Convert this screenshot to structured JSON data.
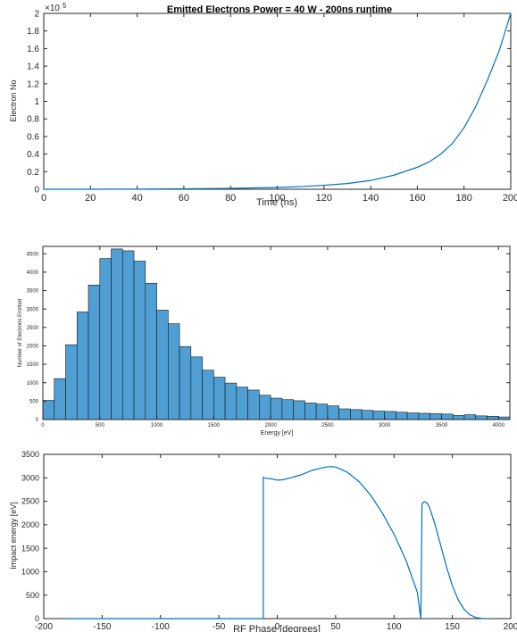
{
  "chart_data": [
    {
      "type": "line",
      "title": "Emitted Electrons Power = 40 W - 200ns runtime",
      "xlabel": "Time (ns)",
      "ylabel": "Electron No",
      "y_multiplier": "×10",
      "y_exponent": "5",
      "xlim": [
        0,
        200
      ],
      "ylim": [
        0,
        2
      ],
      "xticks": [
        "0",
        "20",
        "40",
        "60",
        "80",
        "100",
        "120",
        "140",
        "160",
        "180",
        "200"
      ],
      "yticks": [
        "0",
        "0.2",
        "0.4",
        "0.6",
        "0.8",
        "1",
        "1.2",
        "1.4",
        "1.6",
        "1.8",
        "2"
      ],
      "series": [
        {
          "x": [
            0,
            20,
            40,
            60,
            80,
            100,
            110,
            120,
            130,
            140,
            150,
            160,
            165,
            170,
            175,
            180,
            185,
            190,
            195,
            200
          ],
          "y": [
            0,
            0,
            0.002,
            0.005,
            0.01,
            0.02,
            0.03,
            0.045,
            0.065,
            0.1,
            0.16,
            0.25,
            0.31,
            0.4,
            0.52,
            0.7,
            0.94,
            1.24,
            1.57,
            2.0
          ]
        }
      ],
      "grid": false,
      "color": "#0072bd"
    },
    {
      "type": "bar",
      "xlabel": "Energy [eV]",
      "ylabel": "Number of Electrons Emitted",
      "xlim": [
        0,
        4100
      ],
      "ylim": [
        0,
        4700
      ],
      "xticks": [
        "0",
        "500",
        "1000",
        "1500",
        "2000",
        "2500",
        "3000",
        "3500",
        "4000"
      ],
      "yticks": [
        "0",
        "500",
        "1000",
        "1500",
        "2000",
        "2500",
        "3000",
        "3500",
        "4000",
        "4500"
      ],
      "bin_start": 0,
      "bin_width": 100,
      "values": [
        520,
        1110,
        2030,
        2920,
        3650,
        4370,
        4630,
        4580,
        4300,
        3700,
        2970,
        2600,
        1980,
        1700,
        1340,
        1150,
        990,
        880,
        800,
        660,
        580,
        540,
        510,
        450,
        420,
        370,
        290,
        270,
        250,
        230,
        220,
        200,
        180,
        170,
        160,
        150,
        110,
        130,
        100,
        90,
        70
      ],
      "grid": false,
      "color": "#4f9ed4"
    },
    {
      "type": "line",
      "xlabel": "RF Phase [degrees]",
      "ylabel": "Impact energy [eV]",
      "xlim": [
        -200,
        200
      ],
      "ylim": [
        0,
        3500
      ],
      "xticks": [
        "-200",
        "-150",
        "-100",
        "-50",
        "0",
        "50",
        "100",
        "150",
        "200"
      ],
      "yticks": [
        "0",
        "500",
        "1000",
        "1500",
        "2000",
        "2500",
        "3000",
        "3500"
      ],
      "series": [
        {
          "x": [
            -180,
            -12,
            -12,
            -10,
            -5,
            0,
            5,
            10,
            20,
            30,
            40,
            45,
            50,
            60,
            70,
            80,
            90,
            100,
            110,
            120,
            123,
            124,
            126,
            128,
            130,
            135,
            140,
            145,
            150,
            155,
            160,
            165,
            170,
            175,
            180
          ],
          "y": [
            0,
            0,
            3010,
            2990,
            2980,
            2950,
            2960,
            2990,
            3060,
            3160,
            3220,
            3240,
            3230,
            3120,
            2920,
            2630,
            2250,
            1800,
            1260,
            560,
            0,
            2450,
            2490,
            2470,
            2400,
            2020,
            1560,
            1100,
            700,
            400,
            200,
            80,
            25,
            5,
            0
          ]
        }
      ],
      "grid": false,
      "color": "#0072bd"
    }
  ]
}
